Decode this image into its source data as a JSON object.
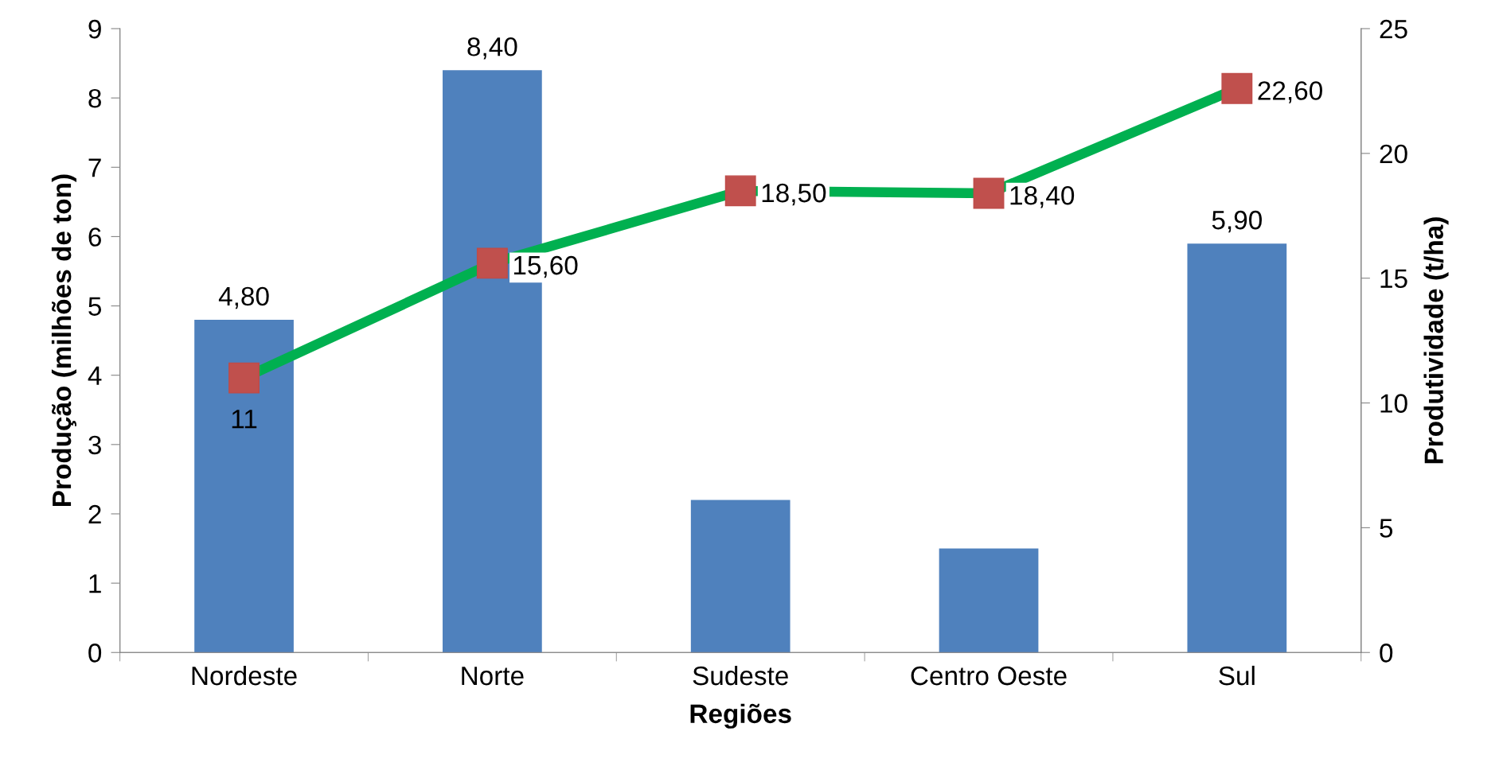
{
  "chart_data": {
    "type": "bar",
    "xlabel": "Regiões",
    "ylabel": "Produção (milhões de ton)",
    "y2label": "Produtividade (t/ha)",
    "categories": [
      "Nordeste",
      "Norte",
      "Sudeste",
      "Centro Oeste",
      "Sul"
    ],
    "series": [
      {
        "color": "#4f81bd",
        "values": [
          4.8,
          8.4,
          2.2,
          1.5,
          5.9
        ],
        "value_labels": [
          "4,80",
          "8,40",
          null,
          null,
          "5,90"
        ]
      },
      {
        "type": "line",
        "axis": "y2",
        "color": "#00b050",
        "colors": [
          "#c0504d",
          "#c0504d",
          "#c0504d",
          "#c0504d",
          "#c0504d"
        ],
        "marker": "square",
        "values": [
          11,
          15.6,
          18.5,
          18.4,
          22.6
        ],
        "value_labels": [
          "11",
          "15,60",
          "18,50",
          "18,40",
          "22,60"
        ]
      }
    ],
    "ylim": [
      0,
      9
    ],
    "yticks": [
      0,
      1,
      2,
      3,
      4,
      5,
      6,
      7,
      8,
      9
    ],
    "y2lim": [
      0,
      25
    ],
    "y2ticks": [
      0,
      5,
      10,
      15,
      20,
      25
    ],
    "grid": false,
    "legend": false
  }
}
